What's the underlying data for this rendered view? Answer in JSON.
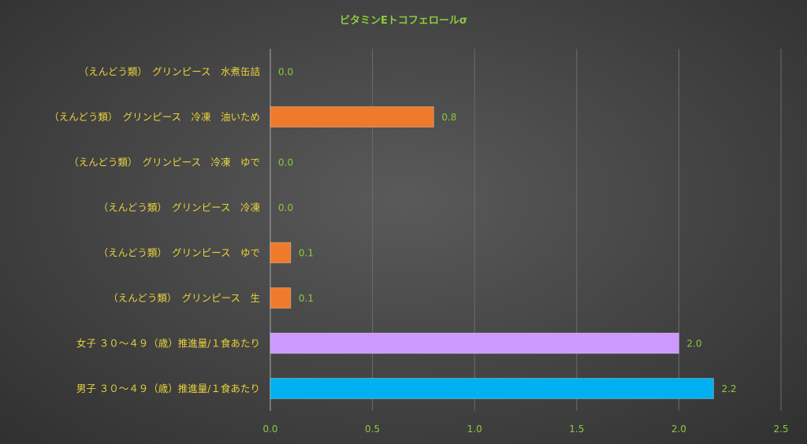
{
  "chart_data": {
    "type": "bar",
    "orientation": "horizontal",
    "title": "ビタミンEトコフェロールσ",
    "xlim": [
      0,
      2.5
    ],
    "x_ticks": [
      "0.0",
      "0.5",
      "1.0",
      "1.5",
      "2.0",
      "2.5"
    ],
    "grid": true,
    "legend": "none",
    "categories": [
      "（えんどう類）　グリンピース　水煮缶詰",
      "（えんどう類）　グリンピース　冷凍　油いため",
      "（えんどう類）　グリンピース　冷凍　ゆで",
      "（えんどう類）　グリンピース　冷凍",
      "（えんどう類）　グリンピース　ゆで",
      "（えんどう類）　グリンピース　生",
      "女子 ３０～４９（歳）推進量/１食あたり",
      "男子 ３０～４９（歳）推進量/１食あたり"
    ],
    "values": [
      0.0,
      0.8,
      0.0,
      0.0,
      0.1,
      0.1,
      2.0,
      2.17
    ],
    "data_labels": [
      "0.0",
      "0.8",
      "0.0",
      "0.0",
      "0.1",
      "0.1",
      "2.0",
      "2.2"
    ],
    "bar_colors": [
      "#f07a2b",
      "#f07a2b",
      "#f07a2b",
      "#f07a2b",
      "#f07a2b",
      "#f07a2b",
      "#cc99ff",
      "#00b0f0"
    ]
  }
}
